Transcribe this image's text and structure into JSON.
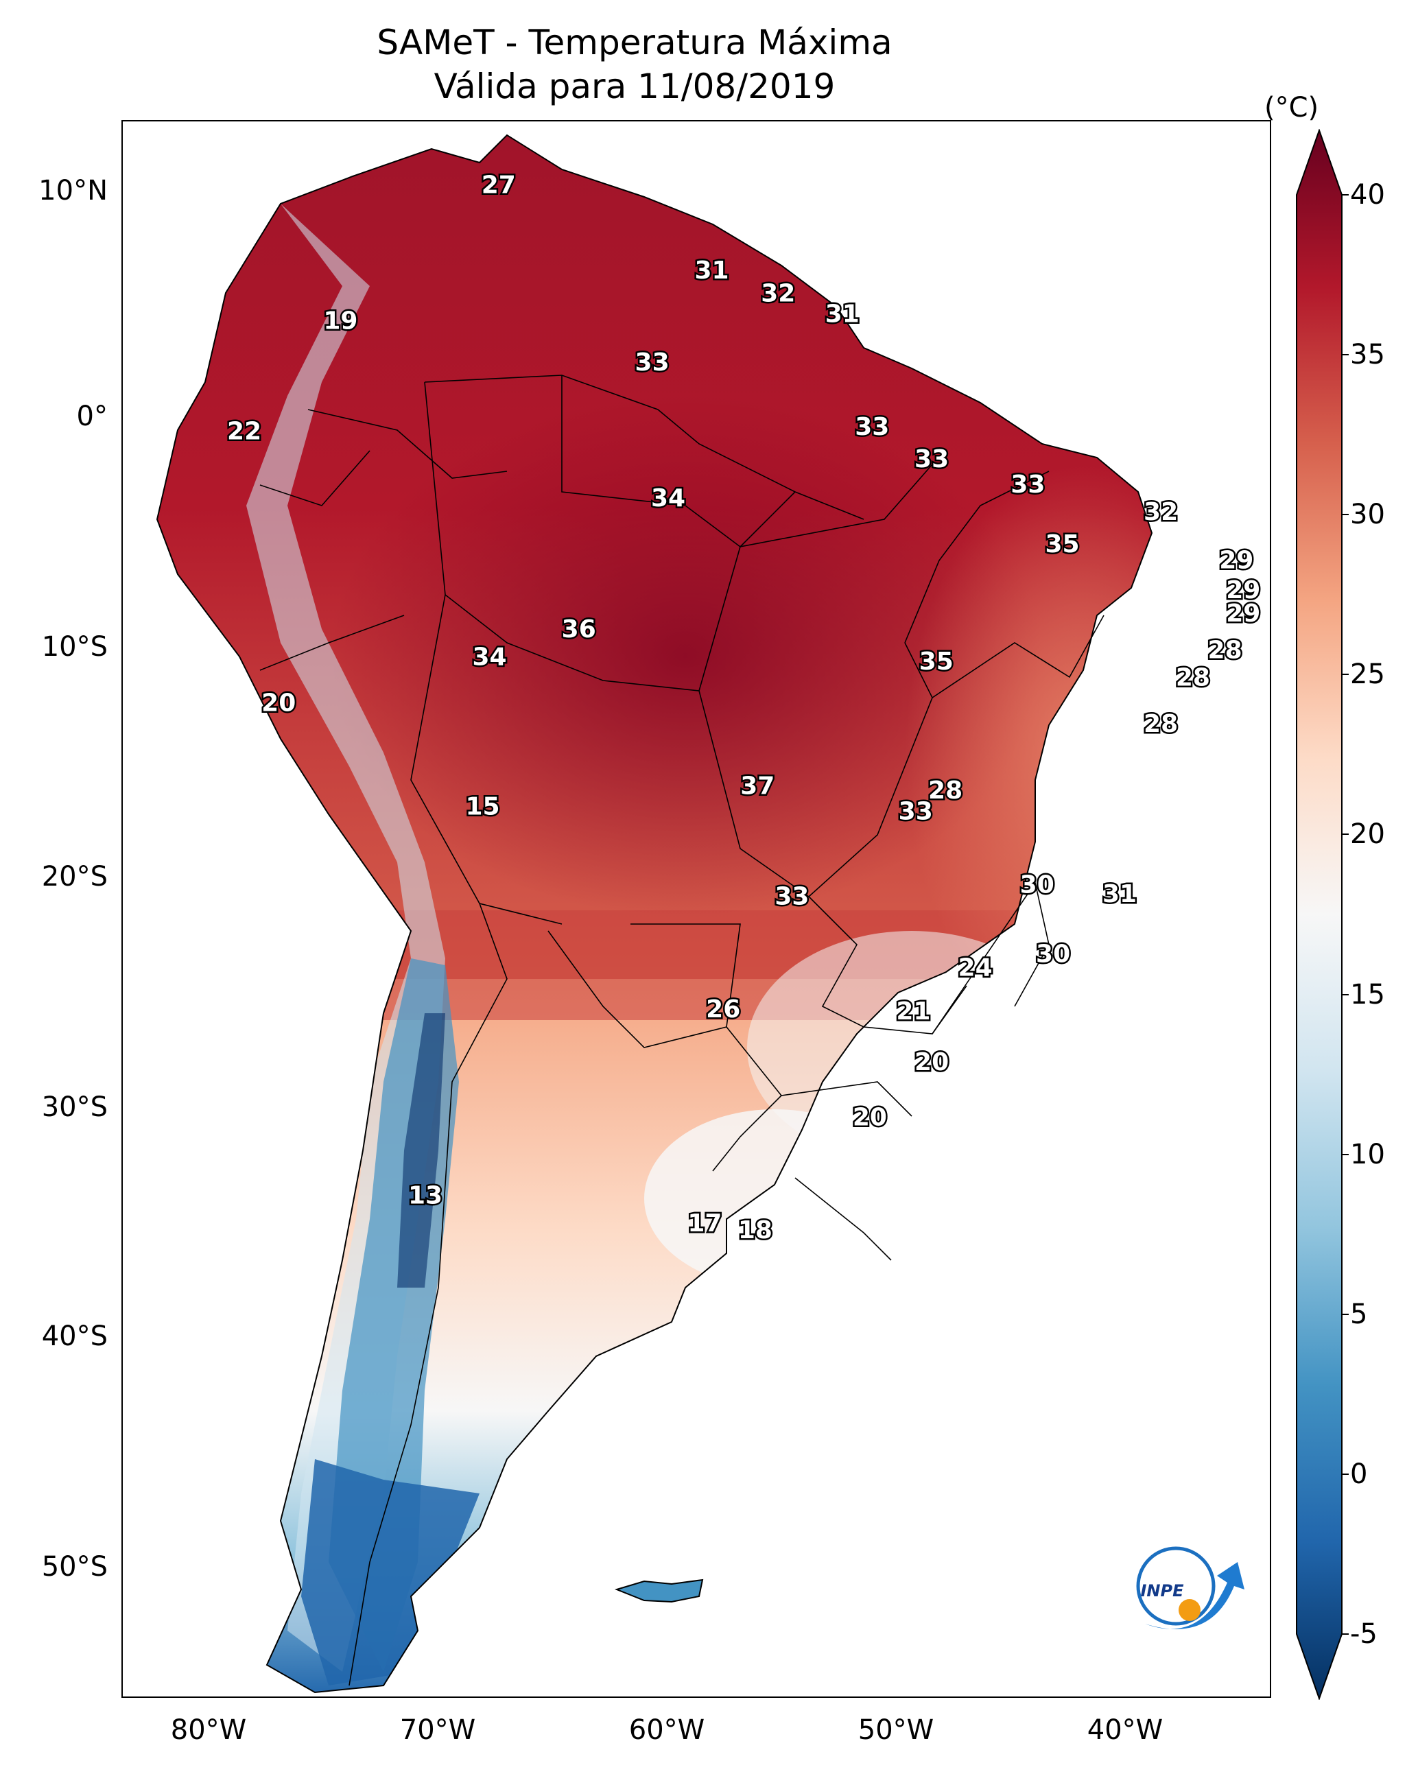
{
  "title": {
    "line1": "SAMeT - Temperatura Máxima",
    "line2": "Válida para 11/08/2019"
  },
  "colorbar": {
    "unit": "(°C)",
    "ticks": [
      "40",
      "35",
      "30",
      "25",
      "20",
      "15",
      "10",
      "5",
      "0",
      "-5"
    ],
    "range": [
      -5,
      40
    ],
    "colors": [
      "#08306b",
      "#2166ac",
      "#4393c3",
      "#92c5de",
      "#d1e5f0",
      "#f7f7f7",
      "#fddbc7",
      "#f4a582",
      "#d6604d",
      "#b2182b",
      "#67001f"
    ]
  },
  "axes": {
    "latitude_labels": [
      "10°N",
      "0°",
      "10°S",
      "20°S",
      "30°S",
      "40°S",
      "50°S"
    ],
    "longitude_labels": [
      "80°W",
      "70°W",
      "60°W",
      "50°W",
      "40°W"
    ]
  },
  "stations": [
    {
      "label": "27",
      "lon": -67.4,
      "lat": 10.5
    },
    {
      "label": "19",
      "lon": -74.3,
      "lat": 4.6
    },
    {
      "label": "22",
      "lon": -78.5,
      "lat": -0.2
    },
    {
      "label": "31",
      "lon": -58.1,
      "lat": 6.8
    },
    {
      "label": "32",
      "lon": -55.2,
      "lat": 5.8
    },
    {
      "label": "31",
      "lon": -52.4,
      "lat": 4.9
    },
    {
      "label": "33",
      "lon": -60.7,
      "lat": 2.8
    },
    {
      "label": "33",
      "lon": -51.1,
      "lat": 0.0
    },
    {
      "label": "33",
      "lon": -48.5,
      "lat": -1.4
    },
    {
      "label": "33",
      "lon": -44.3,
      "lat": -2.5
    },
    {
      "label": "32",
      "lon": -38.5,
      "lat": -3.7
    },
    {
      "label": "34",
      "lon": -60.0,
      "lat": -3.1
    },
    {
      "label": "35",
      "lon": -42.8,
      "lat": -5.1
    },
    {
      "label": "29",
      "lon": -35.2,
      "lat": -5.8
    },
    {
      "label": "29",
      "lon": -34.9,
      "lat": -7.1
    },
    {
      "label": "29",
      "lon": -34.9,
      "lat": -8.1
    },
    {
      "label": "28",
      "lon": -35.7,
      "lat": -9.7
    },
    {
      "label": "28",
      "lon": -37.1,
      "lat": -10.9
    },
    {
      "label": "28",
      "lon": -38.5,
      "lat": -12.9
    },
    {
      "label": "36",
      "lon": -63.9,
      "lat": -8.8
    },
    {
      "label": "34",
      "lon": -67.8,
      "lat": -10.0
    },
    {
      "label": "35",
      "lon": -48.3,
      "lat": -10.2
    },
    {
      "label": "20",
      "lon": -77.0,
      "lat": -12.0
    },
    {
      "label": "15",
      "lon": -68.1,
      "lat": -16.5
    },
    {
      "label": "37",
      "lon": -56.1,
      "lat": -15.6
    },
    {
      "label": "28",
      "lon": -47.9,
      "lat": -15.8
    },
    {
      "label": "33",
      "lon": -49.2,
      "lat": -16.7
    },
    {
      "label": "30",
      "lon": -43.9,
      "lat": -19.9
    },
    {
      "label": "31",
      "lon": -40.3,
      "lat": -20.3
    },
    {
      "label": "33",
      "lon": -54.6,
      "lat": -20.4
    },
    {
      "label": "30",
      "lon": -43.2,
      "lat": -22.9
    },
    {
      "label": "24",
      "lon": -46.6,
      "lat": -23.5
    },
    {
      "label": "26",
      "lon": -57.6,
      "lat": -25.3
    },
    {
      "label": "21",
      "lon": -49.3,
      "lat": -25.4
    },
    {
      "label": "20",
      "lon": -48.5,
      "lat": -27.6
    },
    {
      "label": "20",
      "lon": -51.2,
      "lat": -30.0
    },
    {
      "label": "13",
      "lon": -70.6,
      "lat": -33.4
    },
    {
      "label": "17",
      "lon": -58.4,
      "lat": -34.6
    },
    {
      "label": "18",
      "lon": -56.2,
      "lat": -34.9
    }
  ],
  "logo": {
    "text": "INPE"
  }
}
